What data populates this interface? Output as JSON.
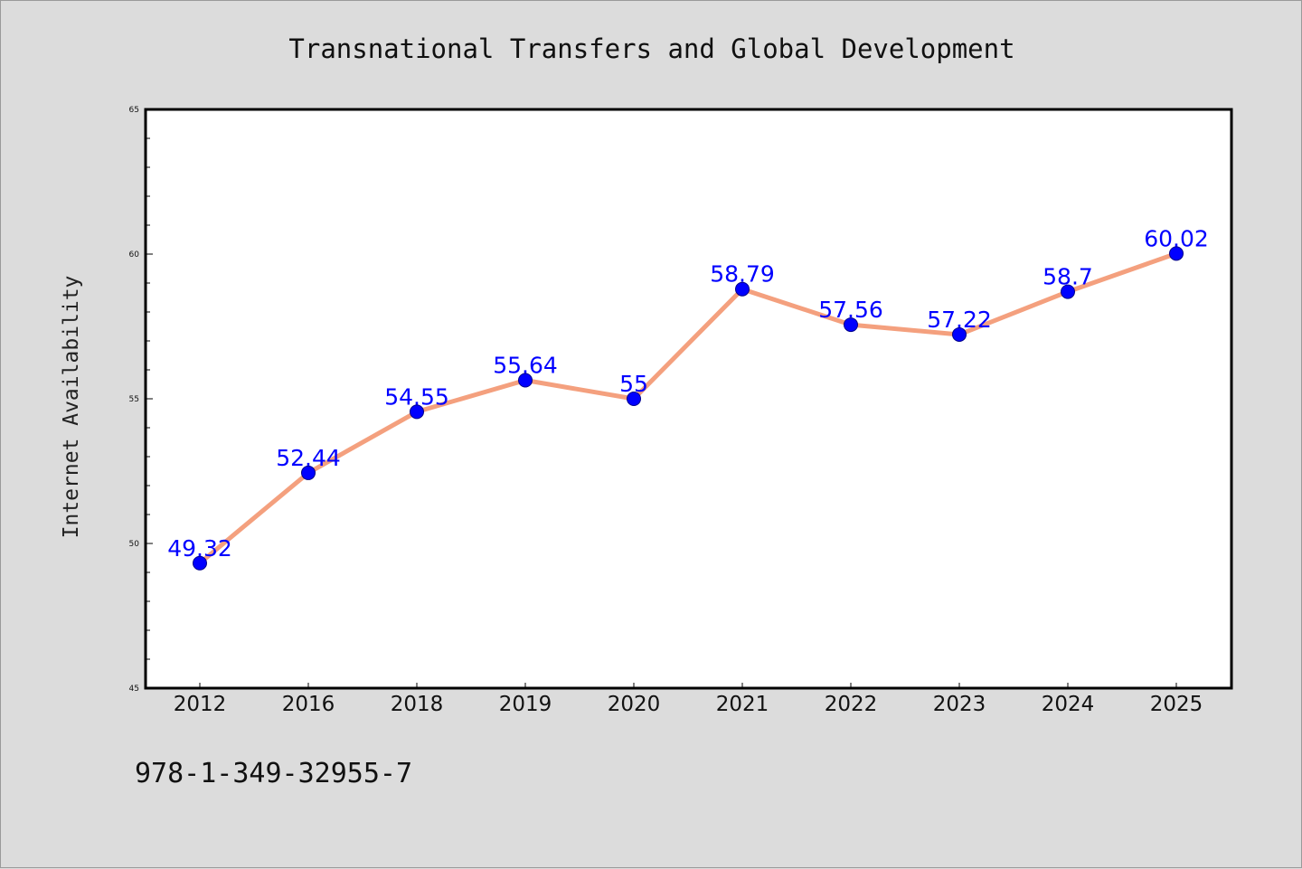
{
  "colors": {
    "background": "#dcdcdc",
    "plot_background": "#ffffff",
    "line": "#f4a07e",
    "marker": "#0000ff",
    "data_label": "#0000ff"
  },
  "chart_data": {
    "type": "line",
    "title": "Transnational Transfers and Global Development",
    "xlabel": "",
    "ylabel": "Internet Availability",
    "categories": [
      "2012",
      "2016",
      "2018",
      "2019",
      "2020",
      "2021",
      "2022",
      "2023",
      "2024",
      "2025"
    ],
    "series": [
      {
        "values": [
          49.32,
          52.44,
          54.55,
          55.64,
          55,
          58.79,
          57.56,
          57.22,
          58.7,
          60.02
        ],
        "data_labels": [
          "49.32",
          "52.44",
          "54.55",
          "55.64",
          "55",
          "58.79",
          "57.56",
          "57.22",
          "58.7",
          "60.02"
        ],
        "marker": "circle"
      }
    ],
    "ylim": [
      45,
      65
    ],
    "y_ticks": [
      "45",
      "50",
      "55",
      "60",
      "65"
    ],
    "grid": false,
    "legend": "none",
    "annotation": "978-1-349-32955-7"
  }
}
